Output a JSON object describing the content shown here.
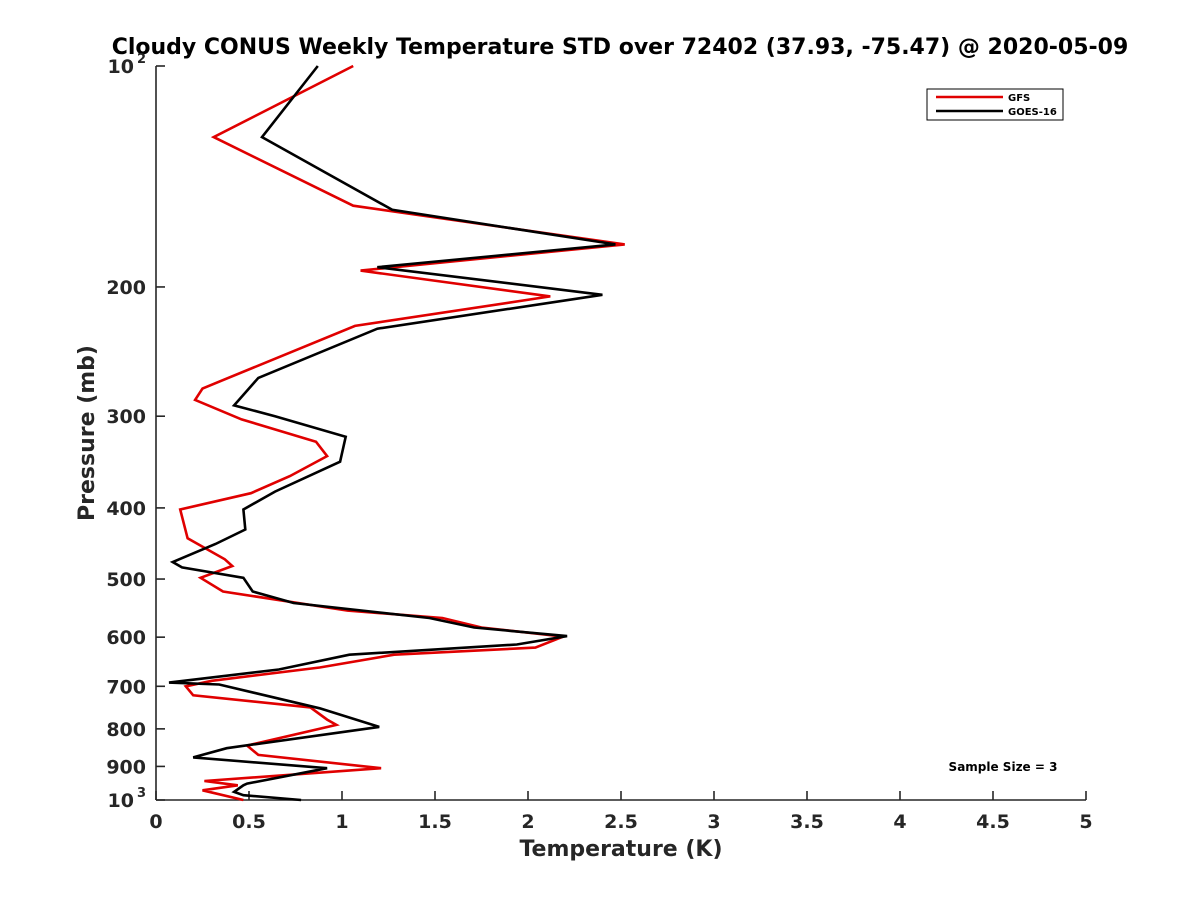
{
  "chart_data": {
    "type": "line",
    "title": "Cloudy CONUS Weekly Temperature STD over 72402 (37.93, -75.47) @ 2020-05-09",
    "xlabel": "Temperature (K)",
    "ylabel": "Pressure (mb)",
    "xlim": [
      0,
      5
    ],
    "ylim": [
      100,
      1000
    ],
    "y_scale": "log",
    "y_reversed": true,
    "grid": false,
    "legend_position": "top-right",
    "x_ticks": [
      0,
      0.5,
      1,
      1.5,
      2,
      2.5,
      3,
      3.5,
      4,
      4.5,
      5
    ],
    "x_tick_labels": [
      "0",
      "0.5",
      "1",
      "1.5",
      "2",
      "2.5",
      "3",
      "3.5",
      "4",
      "4.5",
      "5"
    ],
    "y_ticks": [
      100,
      200,
      300,
      400,
      500,
      600,
      700,
      800,
      900,
      1000
    ],
    "y_tick_labels": [
      {
        "base": "10",
        "exp": "2"
      },
      {
        "base": "200",
        "exp": ""
      },
      {
        "base": "300",
        "exp": ""
      },
      {
        "base": "400",
        "exp": ""
      },
      {
        "base": "500",
        "exp": ""
      },
      {
        "base": "600",
        "exp": ""
      },
      {
        "base": "700",
        "exp": ""
      },
      {
        "base": "800",
        "exp": ""
      },
      {
        "base": "900",
        "exp": ""
      },
      {
        "base": "10",
        "exp": "3"
      }
    ],
    "annotation": "Sample Size = 3",
    "series": [
      {
        "name": "GFS",
        "color": "#e00000",
        "points": [
          [
            1.06,
            100
          ],
          [
            0.31,
            125
          ],
          [
            1.06,
            155
          ],
          [
            2.52,
            175
          ],
          [
            1.1,
            190
          ],
          [
            2.12,
            206
          ],
          [
            1.07,
            226
          ],
          [
            0.25,
            275
          ],
          [
            0.21,
            285
          ],
          [
            0.46,
            303
          ],
          [
            0.86,
            325
          ],
          [
            0.92,
            340
          ],
          [
            0.72,
            362
          ],
          [
            0.51,
            382
          ],
          [
            0.13,
            402
          ],
          [
            0.17,
            440
          ],
          [
            0.37,
            470
          ],
          [
            0.41,
            480
          ],
          [
            0.24,
            498
          ],
          [
            0.36,
            520
          ],
          [
            1.03,
            552
          ],
          [
            1.54,
            565
          ],
          [
            1.75,
            582
          ],
          [
            2.19,
            599
          ],
          [
            2.04,
            620
          ],
          [
            1.28,
            634
          ],
          [
            0.88,
            660
          ],
          [
            0.3,
            688
          ],
          [
            0.16,
            700
          ],
          [
            0.2,
            720
          ],
          [
            0.83,
            748
          ],
          [
            0.92,
            777
          ],
          [
            0.97,
            790
          ],
          [
            0.49,
            843
          ],
          [
            0.55,
            868
          ],
          [
            1.21,
            905
          ],
          [
            0.26,
            942
          ],
          [
            0.44,
            955
          ],
          [
            0.25,
            970
          ],
          [
            0.47,
            1000
          ]
        ]
      },
      {
        "name": "GOES-16",
        "color": "#000000",
        "points": [
          [
            0.87,
            100
          ],
          [
            0.57,
            125
          ],
          [
            1.27,
            157
          ],
          [
            2.47,
            175
          ],
          [
            1.19,
            188
          ],
          [
            2.4,
            205
          ],
          [
            1.19,
            228
          ],
          [
            0.55,
            266
          ],
          [
            0.42,
            290
          ],
          [
            0.64,
            300
          ],
          [
            1.02,
            320
          ],
          [
            0.99,
            346
          ],
          [
            0.64,
            380
          ],
          [
            0.47,
            402
          ],
          [
            0.48,
            428
          ],
          [
            0.32,
            448
          ],
          [
            0.09,
            474
          ],
          [
            0.14,
            482
          ],
          [
            0.47,
            498
          ],
          [
            0.52,
            520
          ],
          [
            0.74,
            539
          ],
          [
            1.47,
            565
          ],
          [
            1.71,
            582
          ],
          [
            2.21,
            598
          ],
          [
            1.94,
            614
          ],
          [
            1.04,
            634
          ],
          [
            0.66,
            664
          ],
          [
            0.07,
            692
          ],
          [
            0.34,
            696
          ],
          [
            0.88,
            750
          ],
          [
            1.2,
            795
          ],
          [
            0.38,
            850
          ],
          [
            0.2,
            875
          ],
          [
            0.92,
            905
          ],
          [
            0.49,
            950
          ],
          [
            0.47,
            955
          ],
          [
            0.42,
            975
          ],
          [
            0.47,
            985
          ],
          [
            0.78,
            1000
          ]
        ]
      }
    ]
  }
}
